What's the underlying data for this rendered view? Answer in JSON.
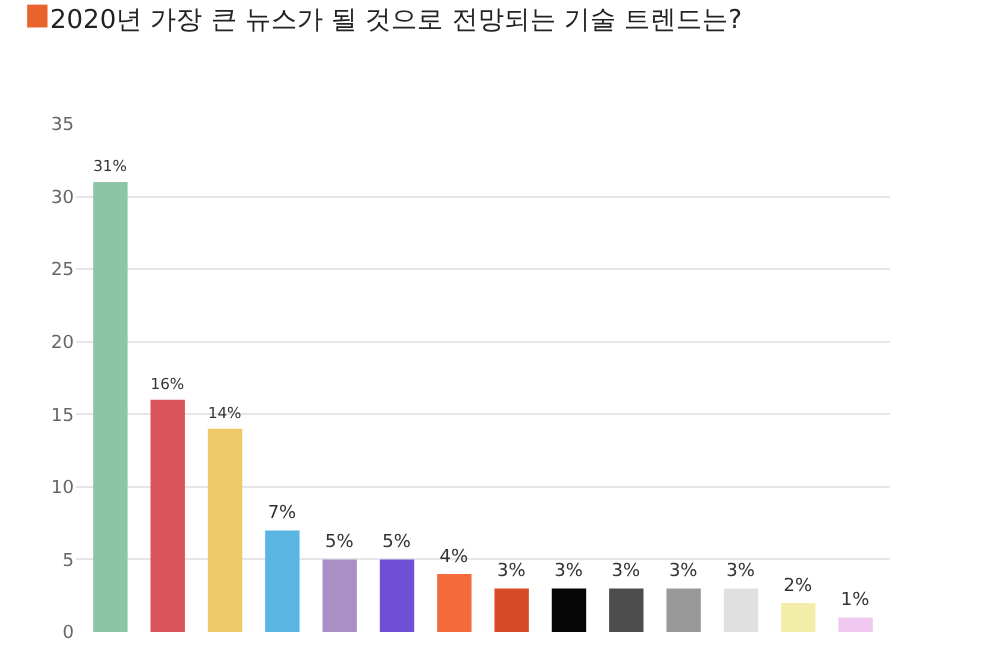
{
  "chart_data": {
    "type": "bar",
    "title": "2020년 가장 큰 뉴스가 될 것으로 전망되는 기술 트렌드는?",
    "categories": [
      null,
      null,
      null,
      null,
      null,
      null,
      null,
      null,
      null,
      null,
      null,
      null,
      null,
      null
    ],
    "values": [
      31,
      16,
      14,
      7,
      5,
      5,
      4,
      3,
      3,
      3,
      3,
      3,
      2,
      1
    ],
    "colors": [
      "#8cc4a8",
      "#d9545a",
      "#eec96a",
      "#5bb5e3",
      "#aa8fc6",
      "#6e4fd6",
      "#f56a3a",
      "#d94a26",
      "#050505",
      "#4d4d4d",
      "#999999",
      "#e0e0e0",
      "#f2eeaa",
      "#f0c8f0"
    ],
    "value_labels": [
      "31%",
      "16%",
      "14%",
      "7%",
      "5%",
      "5%",
      "4%",
      "3%",
      "3%",
      "3%",
      "3%",
      "3%",
      "2%",
      "1%"
    ],
    "ylim": [
      0,
      35
    ],
    "yticks": [
      0,
      5,
      10,
      15,
      20,
      25,
      30,
      35
    ],
    "grid": "y",
    "legend": false
  }
}
